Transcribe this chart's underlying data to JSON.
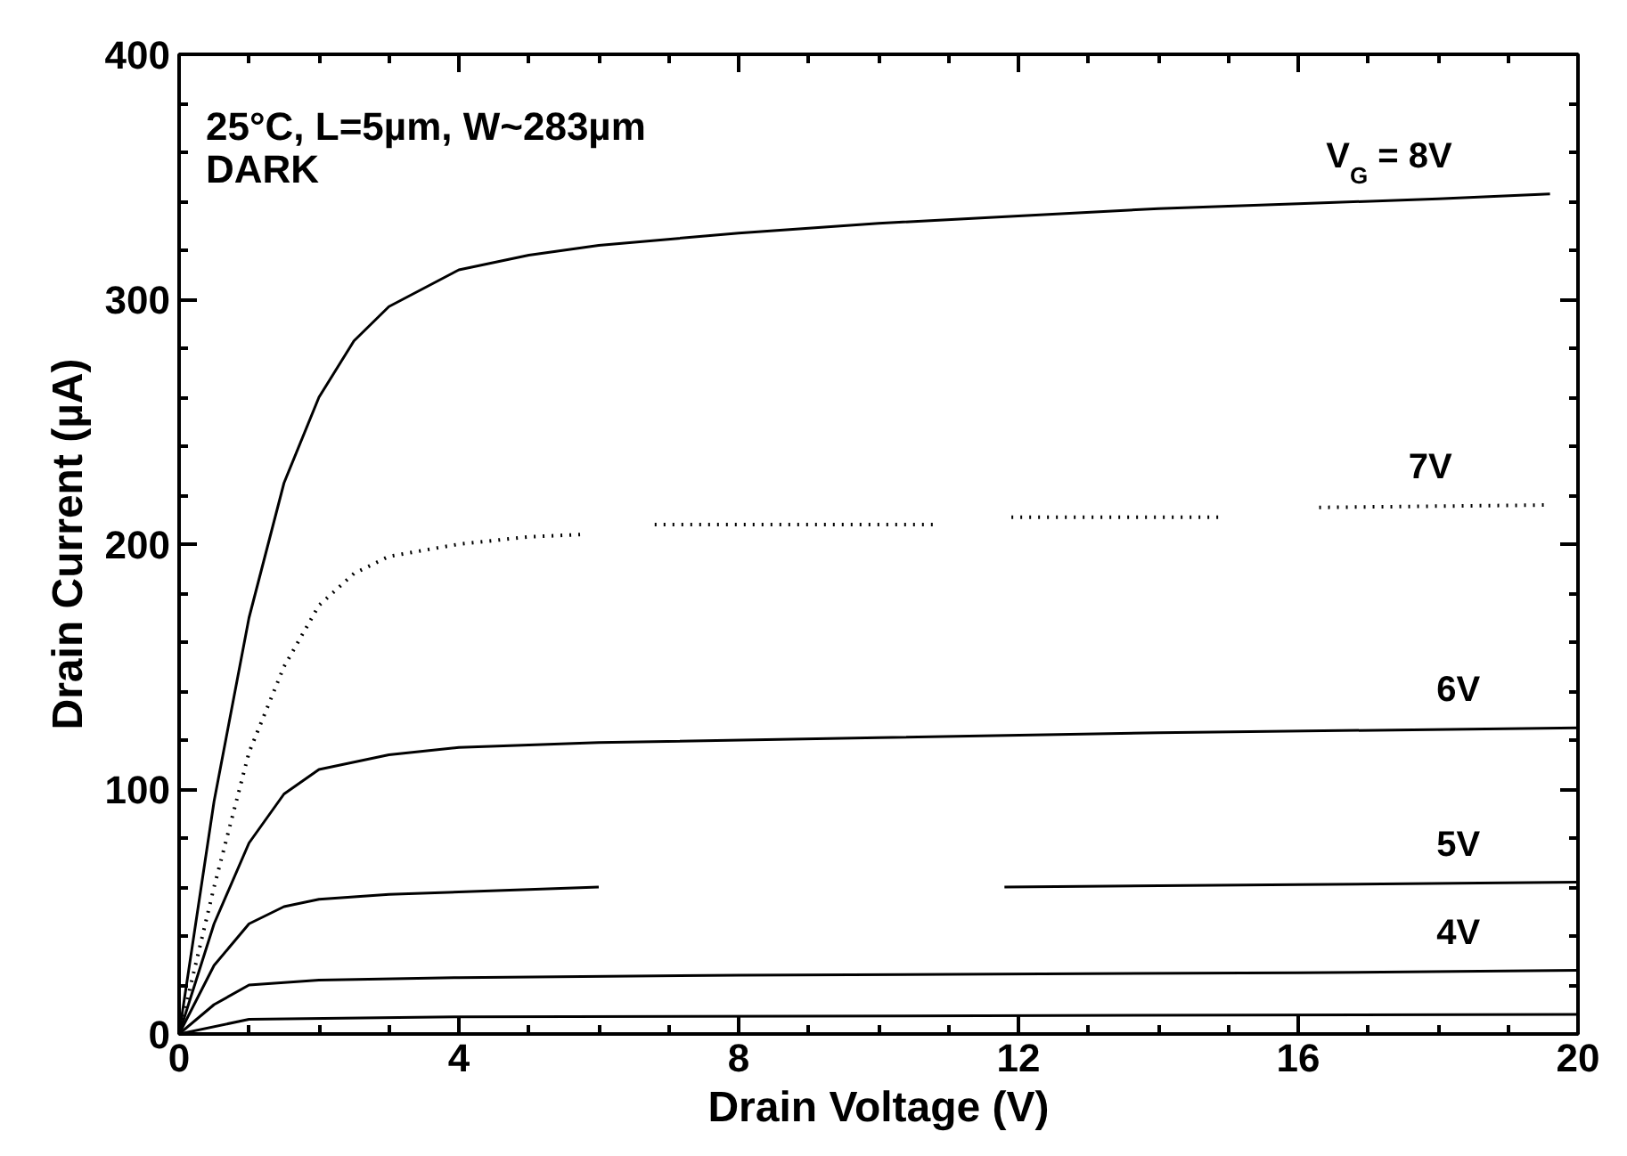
{
  "chart_data": {
    "type": "line",
    "xlabel": "Drain Voltage (V)",
    "ylabel": "Drain Current (µA)",
    "annotations": [
      "25°C, L=5µm, W~283µm",
      "DARK"
    ],
    "xlim": [
      0,
      20
    ],
    "ylim": [
      0,
      400
    ],
    "xticks": [
      0,
      4,
      8,
      12,
      16,
      20
    ],
    "yticks": [
      0,
      100,
      200,
      300,
      400
    ],
    "grid": false,
    "legend": false,
    "marker": "none",
    "series": [
      {
        "name": "V$_{G}$ = 8V",
        "color": "#000000",
        "line_style": "solid",
        "x": [
          0,
          0.5,
          1,
          1.5,
          2,
          2.5,
          3,
          4,
          5,
          6,
          8,
          10,
          12,
          14,
          16,
          18,
          19.6
        ],
        "values": [
          0,
          95,
          170,
          225,
          260,
          283,
          297,
          312,
          318,
          322,
          327,
          331,
          334,
          337,
          339,
          341,
          343
        ]
      },
      {
        "name": "7V",
        "color": "#000000",
        "line_style": "dotted",
        "x": [
          0,
          0.5,
          1,
          1.5,
          2,
          2.5,
          3,
          4,
          5,
          5.8,
          6.3,
          6.8,
          10.8,
          11.3,
          11.9,
          14.9,
          15.6,
          16.3,
          19.6
        ],
        "values": [
          0,
          60,
          115,
          150,
          175,
          188,
          195,
          200,
          203,
          204,
          null,
          208,
          208,
          null,
          211,
          211,
          null,
          215,
          216
        ]
      },
      {
        "name": "6V",
        "color": "#000000",
        "line_style": "solid",
        "x": [
          0,
          0.5,
          1,
          1.5,
          2,
          3,
          4,
          6,
          10,
          14,
          20
        ],
        "values": [
          0,
          45,
          78,
          98,
          108,
          114,
          117,
          119,
          121,
          123,
          125
        ]
      },
      {
        "name": "5V",
        "color": "#000000",
        "line_style": "solid",
        "x": [
          0,
          0.5,
          1,
          1.5,
          2,
          3,
          4,
          6,
          9,
          11.8,
          16,
          20
        ],
        "values": [
          0,
          28,
          45,
          52,
          55,
          57,
          58,
          60,
          null,
          60,
          61,
          62
        ]
      },
      {
        "name": "4V",
        "color": "#000000",
        "line_style": "solid",
        "x": [
          0,
          0.5,
          1,
          2,
          4,
          8,
          16,
          20
        ],
        "values": [
          0,
          12,
          20,
          22,
          23,
          24,
          25,
          26
        ]
      },
      {
        "color": "#000000",
        "line_style": "solid",
        "x": [
          0,
          1,
          4,
          20
        ],
        "values": [
          0,
          6,
          7,
          8
        ]
      }
    ]
  }
}
